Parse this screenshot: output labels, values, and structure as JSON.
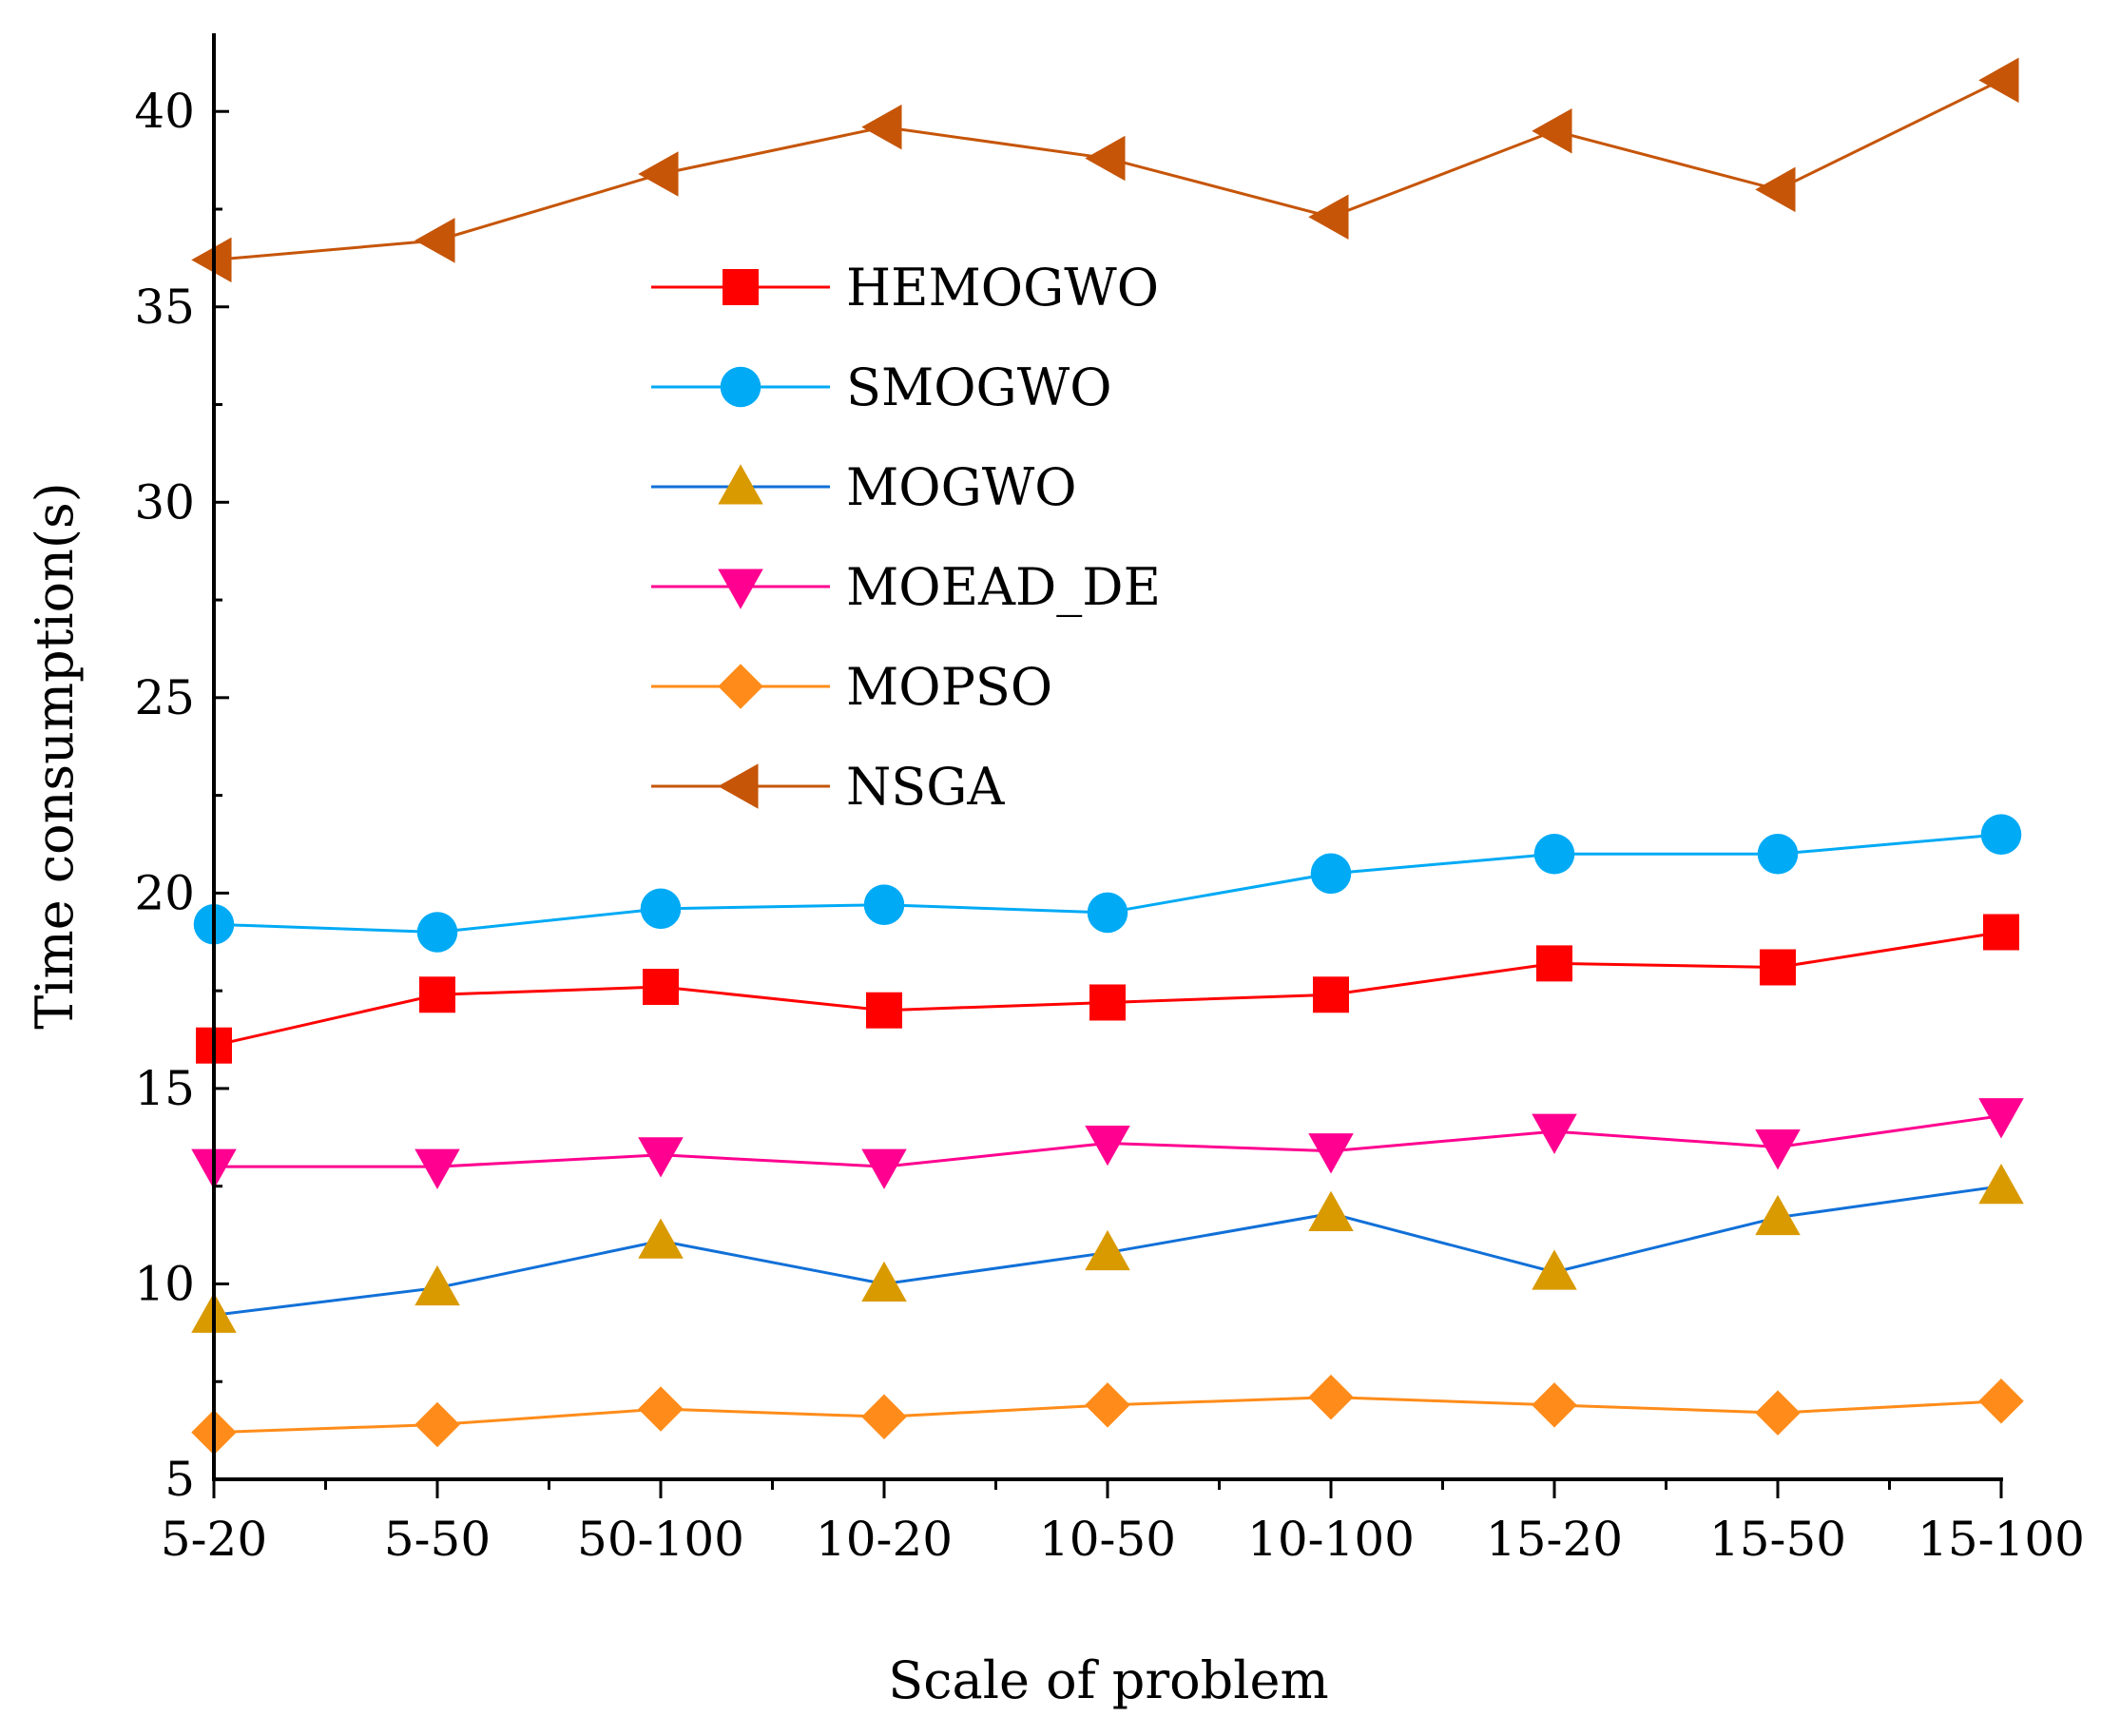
{
  "chart_data": {
    "type": "line",
    "title": "",
    "xlabel": "Scale of problem",
    "ylabel": "Time consumption(s)",
    "categories": [
      "5-20",
      "5-50",
      "50-100",
      "10-20",
      "10-50",
      "10-100",
      "15-20",
      "15-50",
      "15-100"
    ],
    "ylim": [
      5,
      42
    ],
    "yticks": [
      5,
      10,
      15,
      20,
      25,
      30,
      35,
      40
    ],
    "grid": false,
    "legend_position": "upper-center",
    "series": [
      {
        "name": "HEMOGWO",
        "marker": "square",
        "color": "#ff0000",
        "values": [
          16.1,
          17.4,
          17.6,
          17.0,
          17.2,
          17.4,
          18.2,
          18.1,
          19.0
        ]
      },
      {
        "name": "SMOGWO",
        "marker": "circle",
        "color": "#00aaf5",
        "values": [
          19.2,
          19.0,
          19.6,
          19.7,
          19.5,
          20.5,
          21.0,
          21.0,
          21.5
        ]
      },
      {
        "name": "MOGWO",
        "marker": "triangle-up",
        "color": "#d99a00",
        "line_color": "#1170d8",
        "values": [
          9.2,
          9.9,
          11.1,
          10.0,
          10.8,
          11.8,
          10.3,
          11.7,
          12.5
        ]
      },
      {
        "name": "MOEAD_DE",
        "marker": "triangle-down",
        "color": "#ff0090",
        "values": [
          13.0,
          13.0,
          13.3,
          13.0,
          13.6,
          13.4,
          13.9,
          13.5,
          14.3
        ]
      },
      {
        "name": "MOPSO",
        "marker": "diamond",
        "color": "#ff8c1a",
        "values": [
          6.2,
          6.4,
          6.8,
          6.6,
          6.9,
          7.1,
          6.9,
          6.7,
          7.0
        ]
      },
      {
        "name": "NSGA",
        "marker": "triangle-left",
        "color": "#c65508",
        "values": [
          36.2,
          36.7,
          38.4,
          39.6,
          38.8,
          37.3,
          39.5,
          38.0,
          40.8
        ]
      }
    ]
  }
}
